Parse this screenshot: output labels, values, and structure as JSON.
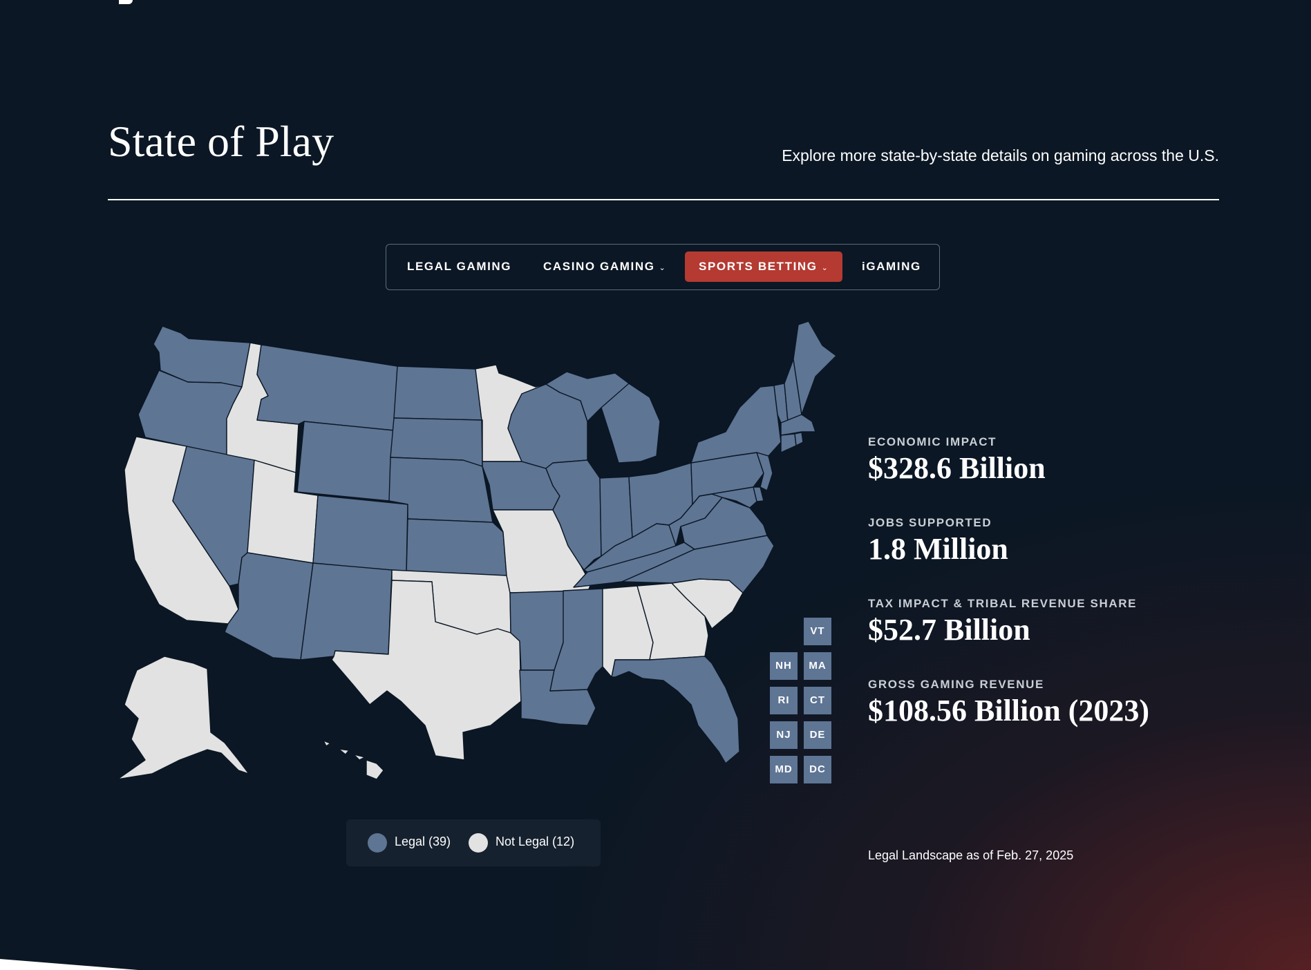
{
  "header": {
    "title": "State of Play",
    "subtitle": "Explore more state-by-state details on gaming across the U.S."
  },
  "tabs": [
    {
      "label": "LEGAL GAMING",
      "has_dropdown": false,
      "active": false
    },
    {
      "label": "CASINO GAMING",
      "has_dropdown": true,
      "active": false
    },
    {
      "label": "SPORTS BETTING",
      "has_dropdown": true,
      "active": true
    },
    {
      "label": "iGAMING",
      "has_dropdown": false,
      "active": false
    }
  ],
  "map": {
    "legal_color": "#5e7594",
    "not_legal_color": "#e2e2e2",
    "legal_states": [
      "WA",
      "OR",
      "NV",
      "AZ",
      "NM",
      "CO",
      "WY",
      "MT",
      "ND",
      "SD",
      "NE",
      "KS",
      "IA",
      "IL",
      "WI",
      "MI",
      "IN",
      "OH",
      "KY",
      "TN",
      "AR",
      "LA",
      "MS",
      "FL",
      "NC",
      "VA",
      "WV",
      "PA",
      "NY",
      "VT",
      "NH",
      "ME",
      "MA",
      "RI",
      "CT",
      "NJ",
      "DE",
      "MD",
      "DC"
    ],
    "not_legal_states": [
      "CA",
      "ID",
      "UT",
      "TX",
      "OK",
      "MO",
      "MN",
      "AL",
      "GA",
      "SC",
      "AK",
      "HI"
    ],
    "small_state_labels": [
      "VT",
      "NH",
      "MA",
      "RI",
      "CT",
      "NJ",
      "DE",
      "MD",
      "DC"
    ]
  },
  "legend": {
    "legal": "Legal  (39)",
    "not_legal": "Not Legal  (12)"
  },
  "stats": [
    {
      "label": "ECONOMIC IMPACT",
      "value": "$328.6 Billion"
    },
    {
      "label": "JOBS SUPPORTED",
      "value": "1.8 Million"
    },
    {
      "label": "TAX IMPACT & TRIBAL REVENUE SHARE",
      "value": "$52.7 Billion"
    },
    {
      "label": "GROSS GAMING REVENUE",
      "value": "$108.56 Billion (2023)"
    }
  ],
  "as_of": "Legal Landscape as of Feb. 27, 2025"
}
